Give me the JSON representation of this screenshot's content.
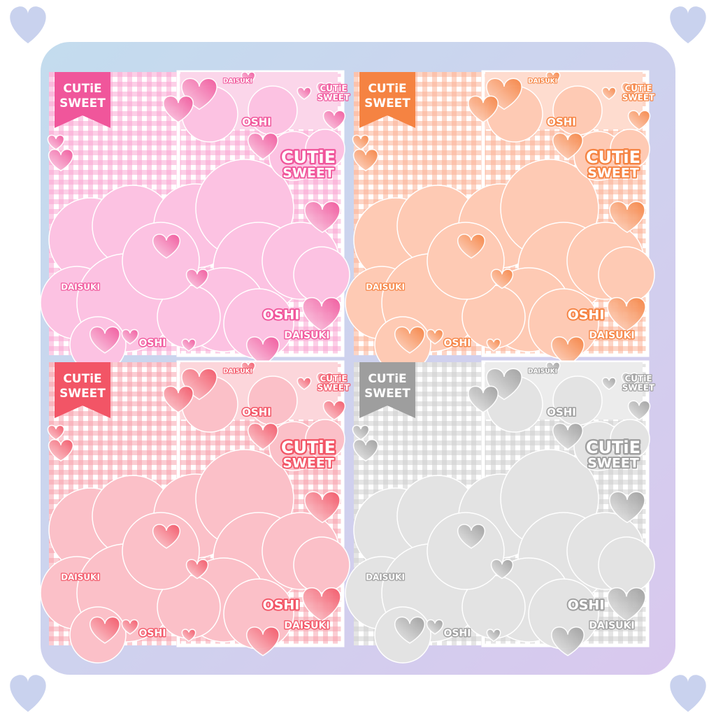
{
  "panels": [
    {
      "labels": [
        "CUTiE",
        "SWEET",
        "DAISUKI",
        "CUTiE",
        "SWEET",
        "OSHI",
        "CUTiE",
        "SWEET",
        "DAISUKI",
        "OSHI",
        "DAISUKI",
        "OSHI"
      ]
    },
    {
      "labels": [
        "CUTiE",
        "SWEET",
        "DAISUKI",
        "CUTiE",
        "SWEET",
        "OSHI",
        "CUTiE",
        "SWEET",
        "DAISUKI",
        "OSHI",
        "DAISUKI",
        "OSHI"
      ]
    },
    {
      "labels": [
        "CUTiE",
        "SWEET",
        "DAISUKI",
        "CUTiE",
        "SWEET",
        "OSHI",
        "CUTiE",
        "SWEET",
        "DAISUKI",
        "OSHI",
        "DAISUKI",
        "OSHI"
      ]
    },
    {
      "labels": [
        "CUTiE",
        "SWEET",
        "DAISUKI",
        "CUTiE",
        "SWEET",
        "OSHI",
        "CUTiE",
        "SWEET",
        "DAISUKI",
        "OSHI",
        "DAISUKI",
        "OSHI"
      ]
    }
  ]
}
